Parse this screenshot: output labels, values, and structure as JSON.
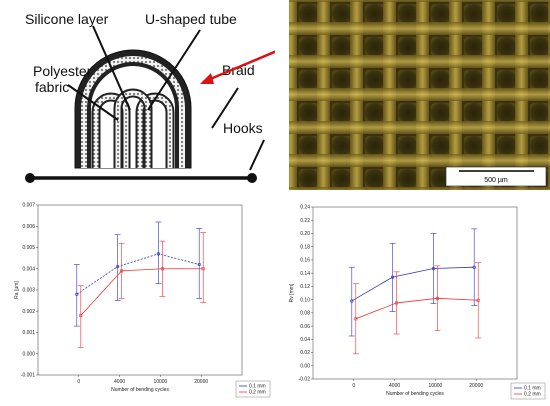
{
  "schematic": {
    "labels": {
      "silicone": "Silicone layer",
      "tube": "U-shaped tube",
      "polyester_line1": "Polyester",
      "polyester_line2": "fabric",
      "braid": "Braid",
      "hooks": "Hooks"
    }
  },
  "micrograph": {
    "scale_bar": "500 µm"
  },
  "chart_data": [
    {
      "type": "line",
      "title": "",
      "xlabel": "Number of bending cycles",
      "ylabel": "Ra [μm]",
      "categories": [
        "0",
        "4000",
        "10000",
        "20000"
      ],
      "ylim": [
        -0.001,
        0.007
      ],
      "yticks": [
        "-0.001",
        "0.000",
        "0.001",
        "0.002",
        "0.003",
        "0.004",
        "0.005",
        "0.006",
        "0.007"
      ],
      "legend_position": "bottom-right",
      "series": [
        {
          "name": "0.1 mm",
          "color": "#3333cc",
          "dash": "dashed",
          "values": [
            0.0028,
            0.0041,
            0.0047,
            0.0042
          ],
          "err_low": [
            0.0013,
            0.0025,
            0.0033,
            0.0026
          ],
          "err_high": [
            0.0042,
            0.0056,
            0.0062,
            0.0059
          ]
        },
        {
          "name": "0.2 mm",
          "color": "#ee3333",
          "dash": "solid",
          "values": [
            0.0018,
            0.0039,
            0.004,
            0.004
          ],
          "err_low": [
            0.0003,
            0.0026,
            0.0027,
            0.0024
          ],
          "err_high": [
            0.0032,
            0.0052,
            0.0053,
            0.0057
          ]
        }
      ]
    },
    {
      "type": "line",
      "title": "",
      "xlabel": "Number of bending cycles",
      "ylabel": "Rv [mm]",
      "categories": [
        "0",
        "4000",
        "10000",
        "20000"
      ],
      "ylim": [
        -0.02,
        0.24
      ],
      "yticks": [
        "-0.02",
        "0.00",
        "0.02",
        "0.04",
        "0.06",
        "0.08",
        "0.10",
        "0.12",
        "0.14",
        "0.16",
        "0.18",
        "0.20",
        "0.22",
        "0.24"
      ],
      "legend_position": "bottom-right",
      "series": [
        {
          "name": "0.1 mm",
          "color": "#3333cc",
          "dash": "solid",
          "values": [
            0.098,
            0.134,
            0.147,
            0.149
          ],
          "err_low": [
            0.045,
            0.082,
            0.094,
            0.091
          ],
          "err_high": [
            0.149,
            0.185,
            0.2,
            0.207
          ]
        },
        {
          "name": "0.2 mm",
          "color": "#ee3333",
          "dash": "solid",
          "values": [
            0.071,
            0.095,
            0.102,
            0.099
          ],
          "err_low": [
            0.018,
            0.048,
            0.053,
            0.042
          ],
          "err_high": [
            0.124,
            0.142,
            0.151,
            0.156
          ]
        }
      ]
    }
  ]
}
